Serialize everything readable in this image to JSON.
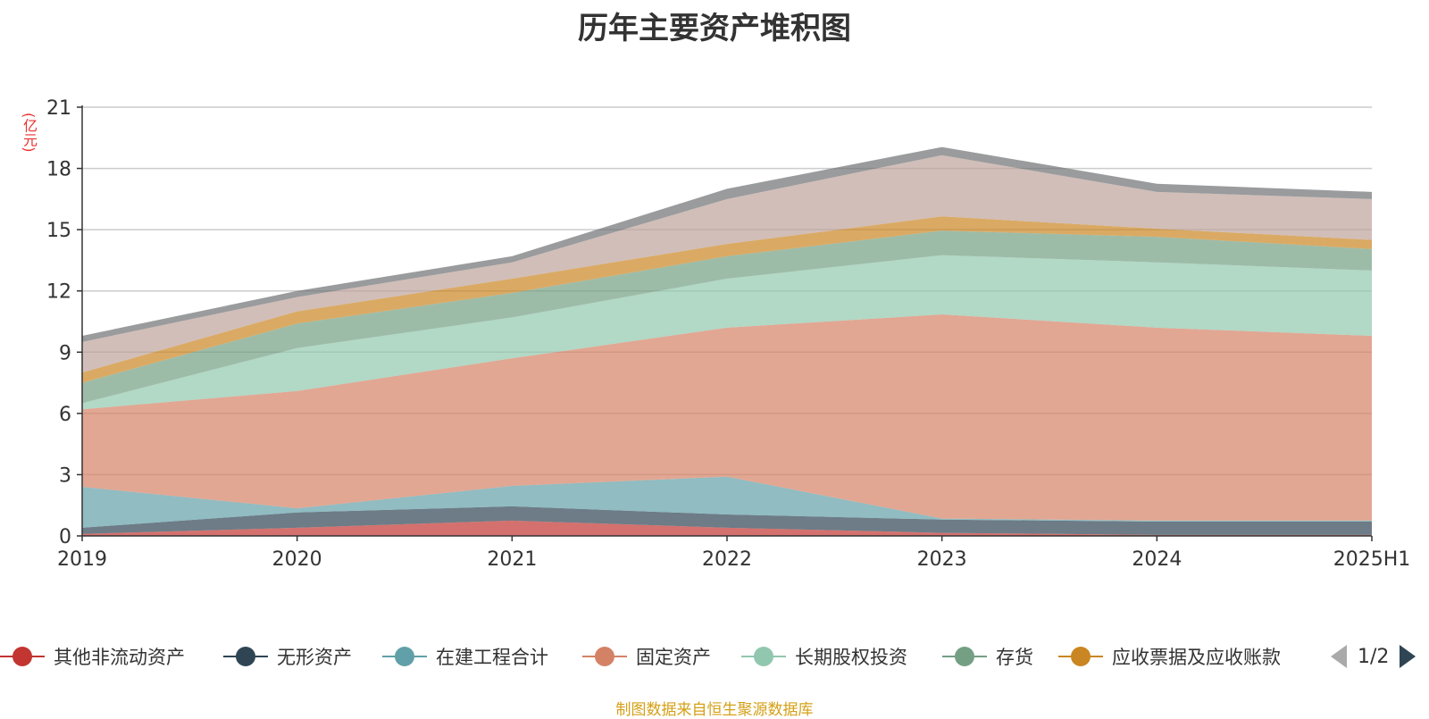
{
  "chart_data": {
    "type": "area",
    "title": "历年主要资产堆积图",
    "ylabel": "(亿元)",
    "categories": [
      "2019",
      "2020",
      "2021",
      "2022",
      "2023",
      "2024",
      "2025H1"
    ],
    "ylim": [
      0,
      21
    ],
    "yticks": [
      "0",
      "3",
      "6",
      "9",
      "12",
      "15",
      "18",
      "21"
    ],
    "stacked": true,
    "grid": true,
    "legend_position": "bottom",
    "series": [
      {
        "name": "其他非流动资产",
        "color": "#c23531",
        "values": [
          0.1,
          0.4,
          0.75,
          0.4,
          0.15,
          0.05,
          0.05
        ]
      },
      {
        "name": "无形资产",
        "color": "#2f4554",
        "values": [
          0.3,
          0.75,
          0.7,
          0.65,
          0.65,
          0.65,
          0.65
        ]
      },
      {
        "name": "在建工程合计",
        "color": "#61a0a8",
        "values": [
          2.0,
          0.2,
          1.0,
          1.85,
          0.05,
          0.05,
          0.05
        ]
      },
      {
        "name": "固定资产",
        "color": "#d48265",
        "values": [
          3.8,
          5.75,
          6.25,
          7.3,
          10.0,
          9.45,
          9.05
        ]
      },
      {
        "name": "长期股权投资",
        "color": "#91c7ae",
        "values": [
          0.3,
          2.1,
          2.0,
          2.4,
          2.9,
          3.2,
          3.2
        ]
      },
      {
        "name": "存货",
        "color": "#749f83",
        "values": [
          1.0,
          1.2,
          1.2,
          1.1,
          1.2,
          1.25,
          1.05
        ]
      },
      {
        "name": "应收票据及应收账款",
        "color": "#ca8622",
        "values": [
          0.5,
          0.6,
          0.7,
          0.6,
          0.7,
          0.4,
          0.45
        ]
      },
      {
        "name": "",
        "color": "#bda29a",
        "values": [
          1.5,
          0.7,
          0.8,
          2.2,
          3.0,
          1.8,
          2.0
        ]
      },
      {
        "name": "",
        "color": "#6e7074",
        "values": [
          0.3,
          0.3,
          0.3,
          0.5,
          0.4,
          0.4,
          0.35
        ]
      }
    ]
  },
  "legend": {
    "page_text": "1/2"
  },
  "source_note": "制图数据来自恒生聚源数据库"
}
